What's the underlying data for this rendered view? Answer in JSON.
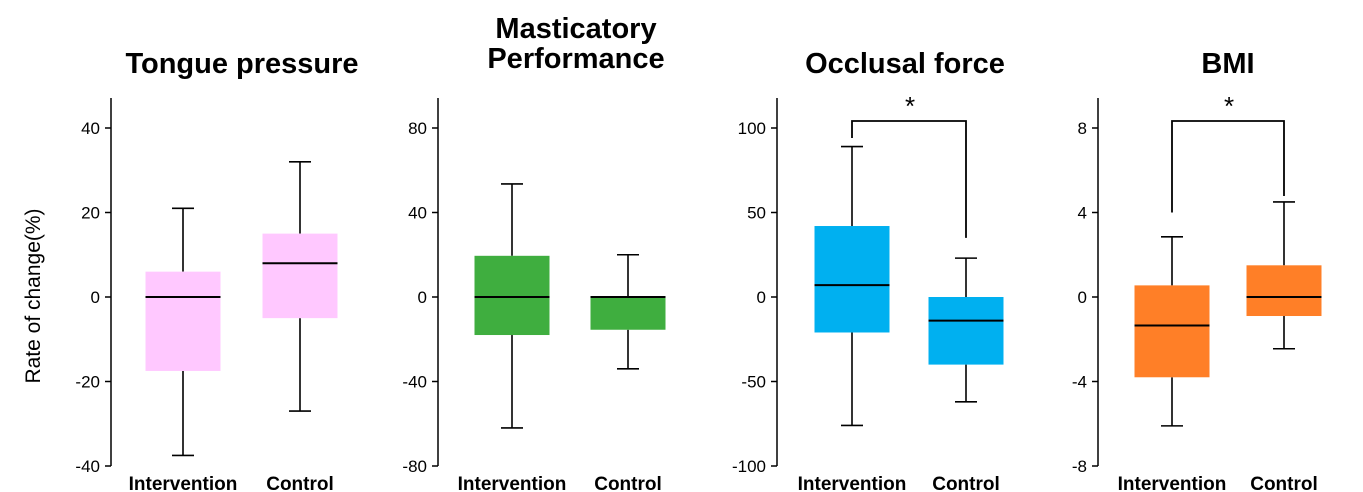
{
  "ylabel": "Rate of change(%)",
  "chart_data": [
    {
      "type": "box",
      "title": [
        "Tongue pressure"
      ],
      "ylim": [
        -40,
        40
      ],
      "yticks": [
        -40,
        -20,
        0,
        20,
        40
      ],
      "color": "#ffc8ff",
      "categories": [
        "Intervention",
        "Control"
      ],
      "boxes": [
        {
          "min": -37.5,
          "q1": -17.5,
          "median": 0,
          "q3": 6,
          "max": 21
        },
        {
          "min": -27,
          "q1": -5,
          "median": 8,
          "q3": 15,
          "max": 32
        }
      ],
      "significance": null
    },
    {
      "type": "box",
      "title": [
        "Masticatory",
        "Performance"
      ],
      "ylim": [
        -80,
        80
      ],
      "yticks": [
        -80,
        -40,
        0,
        40,
        80
      ],
      "color": "#3fae3f",
      "categories": [
        "Intervention",
        "Control"
      ],
      "boxes": [
        {
          "min": -62,
          "q1": -18,
          "median": 0,
          "q3": 19.5,
          "max": 53.5
        },
        {
          "min": -34,
          "q1": -15.5,
          "median": 0,
          "q3": 0,
          "max": 20
        }
      ],
      "significance": null
    },
    {
      "type": "box",
      "title": [
        "Occlusal force"
      ],
      "ylim": [
        -100,
        100
      ],
      "yticks": [
        -100,
        -50,
        0,
        50,
        100
      ],
      "color": "#00b0f0",
      "categories": [
        "Intervention",
        "Control"
      ],
      "boxes": [
        {
          "min": -76,
          "q1": -21,
          "median": 7,
          "q3": 42,
          "max": 89
        },
        {
          "min": -62,
          "q1": -40,
          "median": -14,
          "q3": 0,
          "max": 23
        }
      ],
      "significance": "*"
    },
    {
      "type": "box",
      "title": [
        "BMI"
      ],
      "ylim": [
        -8,
        8
      ],
      "yticks": [
        -8,
        -4,
        0,
        4,
        8
      ],
      "color": "#ff7f27",
      "categories": [
        "Intervention",
        "Control"
      ],
      "boxes": [
        {
          "min": -6.1,
          "q1": -3.8,
          "median": -1.35,
          "q3": 0.55,
          "max": 2.85
        },
        {
          "min": -2.45,
          "q1": -0.9,
          "median": 0,
          "q3": 1.5,
          "max": 4.5
        }
      ],
      "significance": "*"
    }
  ]
}
